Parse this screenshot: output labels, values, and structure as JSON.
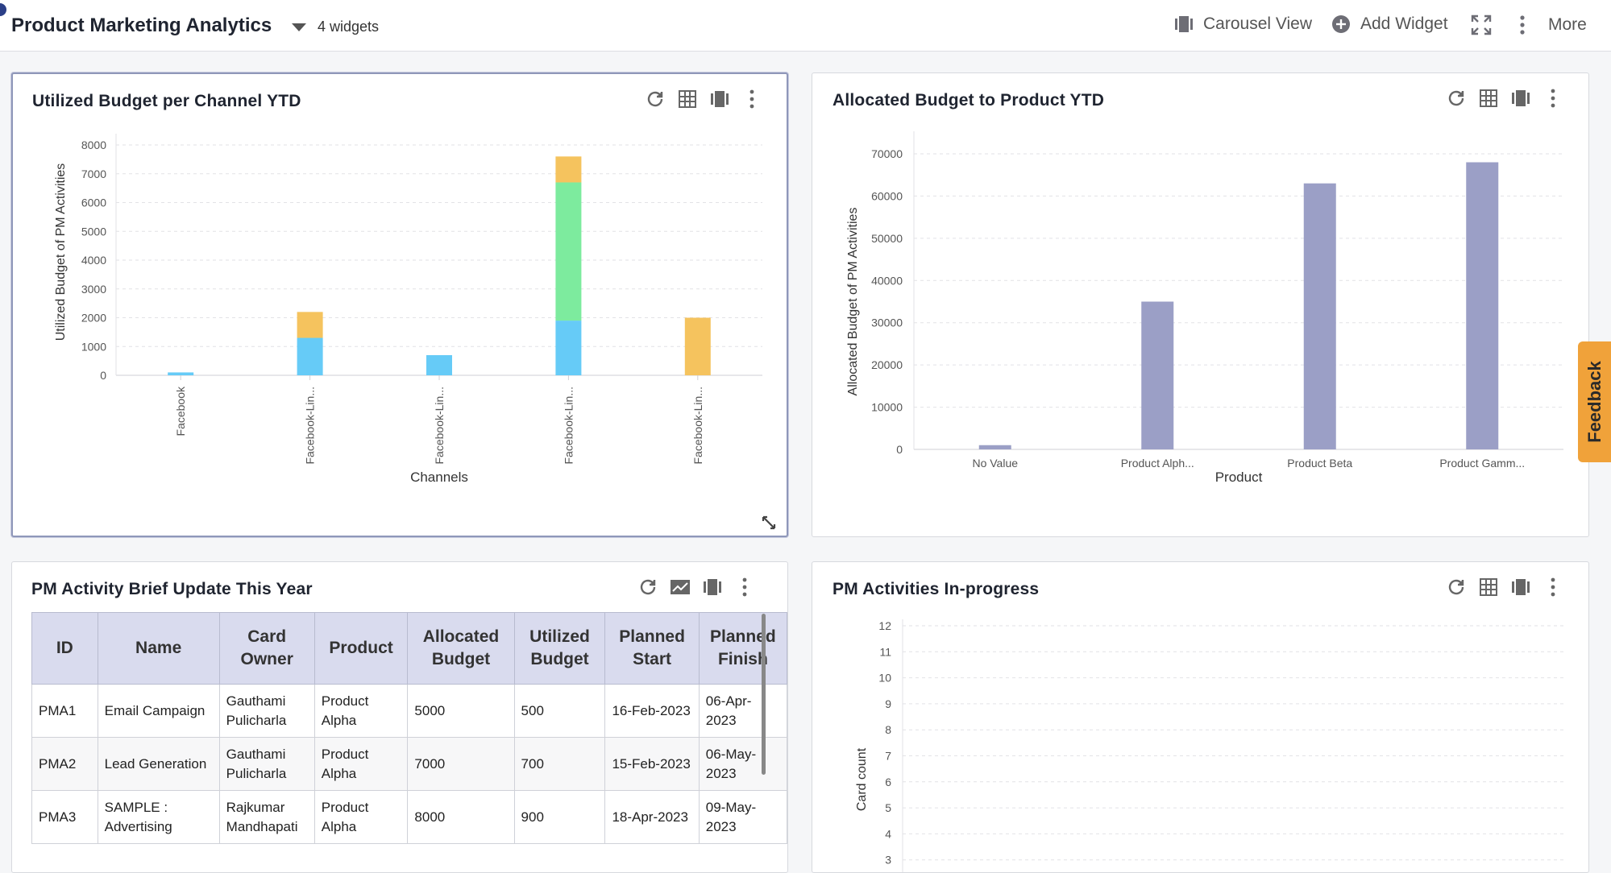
{
  "header": {
    "title": "Product Marketing Analytics",
    "widget_count": "4 widgets",
    "carousel_label": "Carousel View",
    "add_widget_label": "Add Widget",
    "more_label": "More"
  },
  "widgets": {
    "w1": {
      "title": "Utilized Budget per Channel YTD"
    },
    "w2": {
      "title": "Allocated Budget to Product YTD"
    },
    "w3": {
      "title": "PM Activity Brief Update This Year"
    },
    "w4": {
      "title": "PM Activities In-progress"
    }
  },
  "feedback_label": "Feedback",
  "colors": {
    "accent": "#f0a23a",
    "bar_purple": "#9b9fc6",
    "stack_orange": "#f5c35e",
    "stack_blue": "#66cbf7",
    "stack_green": "#7deb9e"
  },
  "chart_data": [
    {
      "type": "bar",
      "stacked": true,
      "title": "Utilized Budget per Channel YTD",
      "xlabel": "Channels",
      "ylabel": "Utilized Budget of PM Activities",
      "categories": [
        "Facebook",
        "Facebook-Lin...",
        "Facebook-Lin...",
        "Facebook-Lin...",
        "Facebook-Lin..."
      ],
      "series": [
        {
          "values": [
            100,
            1300,
            700,
            1900,
            0
          ],
          "color": "#66cbf7"
        },
        {
          "values": [
            0,
            0,
            0,
            4800,
            0
          ],
          "color": "#7deb9e"
        },
        {
          "values": [
            0,
            900,
            0,
            900,
            2000
          ],
          "color": "#f5c35e"
        }
      ],
      "ylim": [
        0,
        8000
      ],
      "yticks": [
        0,
        1000,
        2000,
        3000,
        4000,
        5000,
        6000,
        7000,
        8000
      ],
      "grid": true
    },
    {
      "type": "bar",
      "title": "Allocated Budget to Product YTD",
      "xlabel": "Product",
      "ylabel": "Allocated Budget of PM Activities",
      "categories": [
        "No Value",
        "Product Alph...",
        "Product Beta",
        "Product Gamm..."
      ],
      "values": [
        1000,
        35000,
        63000,
        68000
      ],
      "color": "#9b9fc6",
      "ylim": [
        0,
        70000
      ],
      "yticks": [
        0,
        10000,
        20000,
        30000,
        40000,
        50000,
        60000,
        70000
      ],
      "grid": true
    },
    {
      "type": "bar",
      "title": "PM Activities In-progress",
      "ylabel": "Card count",
      "values": [],
      "ylim": [
        3,
        12
      ],
      "yticks": [
        3,
        4,
        5,
        6,
        7,
        8,
        9,
        10,
        11,
        12
      ],
      "grid": true
    }
  ],
  "table": {
    "columns": [
      [
        "ID"
      ],
      [
        "Name"
      ],
      [
        "Card",
        "Owner"
      ],
      [
        "Product"
      ],
      [
        "Allocated",
        "Budget"
      ],
      [
        "Utilized",
        "Budget"
      ],
      [
        "Planned",
        "Start"
      ],
      [
        "Planned",
        "Finish"
      ]
    ],
    "rows": [
      [
        "PMA1",
        "Email Campaign",
        "Gauthami Pulicharla",
        "Product Alpha",
        "5000",
        "500",
        "16-Feb-2023",
        "06-Apr-2023"
      ],
      [
        "PMA2",
        "Lead Generation",
        "Gauthami Pulicharla",
        "Product Alpha",
        "7000",
        "700",
        "15-Feb-2023",
        "06-May-2023"
      ],
      [
        "PMA3",
        "SAMPLE : Advertising",
        "Rajkumar Mandhapati",
        "Product Alpha",
        "8000",
        "900",
        "18-Apr-2023",
        "09-May-2023"
      ]
    ]
  }
}
